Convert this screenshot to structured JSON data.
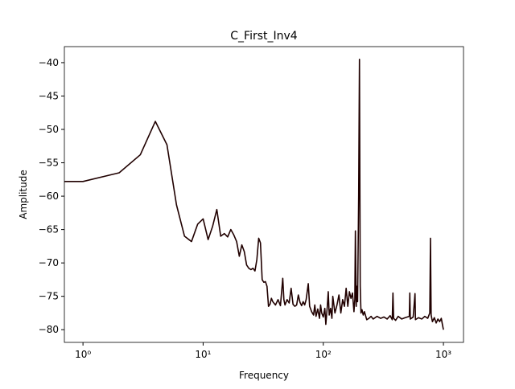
{
  "chart_data": {
    "type": "line",
    "title": "C_First_Inv4",
    "xlabel": "Frequency",
    "ylabel": "Amplitude",
    "xlog": true,
    "color": "#200000",
    "x": [
      0,
      1,
      2,
      3,
      4,
      5,
      6,
      7,
      8,
      9,
      10,
      11,
      12,
      13,
      14,
      15,
      16,
      17,
      18,
      19,
      20,
      21,
      22,
      23,
      24,
      25,
      26,
      27,
      28,
      29,
      30,
      31,
      32,
      33,
      34,
      35,
      36,
      37,
      38,
      40,
      42,
      44,
      46,
      47,
      48,
      50,
      52,
      54,
      56,
      58,
      60,
      62,
      64,
      66,
      68,
      70,
      72,
      75,
      77,
      80,
      83,
      85,
      87,
      90,
      93,
      95,
      97,
      100,
      103,
      105,
      108,
      110,
      112,
      115,
      118,
      120,
      125,
      130,
      135,
      140,
      145,
      150,
      155,
      160,
      165,
      170,
      175,
      180,
      183,
      185,
      188,
      190,
      193,
      197,
      200,
      203,
      206,
      210,
      215,
      220,
      230,
      240,
      250,
      260,
      280,
      300,
      320,
      340,
      360,
      375,
      380,
      385,
      400,
      420,
      450,
      480,
      520,
      525,
      530,
      560,
      580,
      585,
      620,
      660,
      700,
      740,
      770,
      780,
      790,
      810,
      840,
      870,
      900,
      930,
      960,
      980,
      1000
    ],
    "values": [
      -57.8,
      -57.8,
      -56.5,
      -53.8,
      -48.8,
      -52.3,
      -61.3,
      -66.0,
      -66.8,
      -64.2,
      -63.4,
      -66.5,
      -64.5,
      -62.0,
      -66.0,
      -65.6,
      -66.1,
      -65.0,
      -65.8,
      -66.8,
      -69.0,
      -67.3,
      -68.3,
      -70.3,
      -70.8,
      -71.0,
      -70.8,
      -71.2,
      -69.5,
      -66.3,
      -67.0,
      -72.5,
      -72.9,
      -72.8,
      -73.5,
      -76.5,
      -76.2,
      -75.3,
      -75.8,
      -76.3,
      -75.5,
      -76.4,
      -72.3,
      -75.5,
      -76.3,
      -75.5,
      -76.0,
      -73.8,
      -76.2,
      -76.5,
      -76.3,
      -74.8,
      -75.9,
      -76.4,
      -75.8,
      -76.3,
      -75.5,
      -73.1,
      -76.5,
      -77.3,
      -77.8,
      -76.3,
      -78.0,
      -76.9,
      -78.3,
      -76.3,
      -77.5,
      -78.1,
      -76.8,
      -79.2,
      -76.5,
      -74.3,
      -77.8,
      -76.8,
      -78.3,
      -75.0,
      -77.5,
      -76.3,
      -74.8,
      -77.5,
      -75.5,
      -76.5,
      -73.8,
      -76.5,
      -74.3,
      -75.3,
      -74.5,
      -77.3,
      -75.5,
      -65.2,
      -76.5,
      -73.5,
      -75.8,
      -60.0,
      -39.5,
      -73.5,
      -77.5,
      -77.0,
      -77.8,
      -77.3,
      -78.5,
      -78.3,
      -78.0,
      -78.4,
      -78.0,
      -78.3,
      -78.1,
      -78.4,
      -77.9,
      -78.5,
      -74.5,
      -78.3,
      -78.6,
      -78.0,
      -78.4,
      -78.2,
      -78.0,
      -74.5,
      -78.4,
      -78.1,
      -74.6,
      -78.5,
      -78.2,
      -78.4,
      -78.0,
      -78.3,
      -77.5,
      -66.3,
      -77.8,
      -78.8,
      -78.2,
      -79.0,
      -78.4,
      -78.8,
      -78.3,
      -79.2,
      -80.0
    ],
    "xlim": [
      0.7,
      1469
    ],
    "xticks": [
      {
        "value": 1,
        "label": "10⁰"
      },
      {
        "value": 10,
        "label": "10¹"
      },
      {
        "value": 100,
        "label": "10²"
      },
      {
        "value": 1000,
        "label": "10³"
      }
    ],
    "ylim": [
      -81.9,
      -37.6
    ],
    "yticks": [
      {
        "value": -80,
        "label": "−80"
      },
      {
        "value": -75,
        "label": "−75"
      },
      {
        "value": -70,
        "label": "−70"
      },
      {
        "value": -65,
        "label": "−65"
      },
      {
        "value": -60,
        "label": "−60"
      },
      {
        "value": -55,
        "label": "−55"
      },
      {
        "value": -50,
        "label": "−50"
      },
      {
        "value": -45,
        "label": "−45"
      },
      {
        "value": -40,
        "label": "−40"
      }
    ]
  }
}
